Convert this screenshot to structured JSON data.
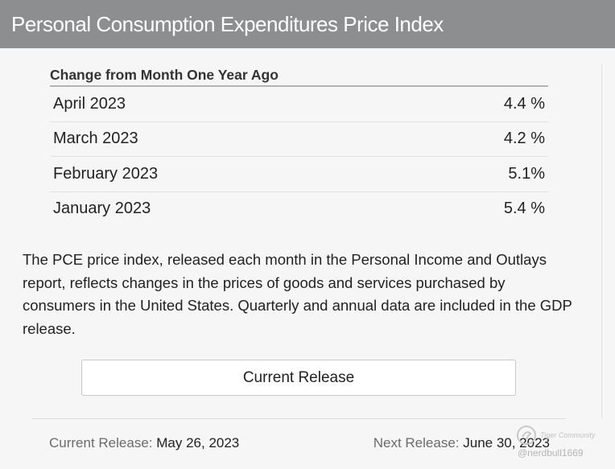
{
  "header": {
    "title": "Personal Consumption Expenditures Price Index"
  },
  "table": {
    "heading": "Change from Month One Year Ago",
    "rows": [
      {
        "month": "April 2023",
        "value": "4.4 %"
      },
      {
        "month": "March 2023",
        "value": "4.2 %"
      },
      {
        "month": "February 2023",
        "value": "5.1%"
      },
      {
        "month": "January 2023",
        "value": "5.4 %"
      }
    ]
  },
  "description": "The PCE price index, released each month in the Personal Income and Outlays report, reflects changes in the prices of goods and services purchased by consumers in the United States. Quarterly and annual data are included in the GDP release.",
  "button": {
    "label": "Current Release"
  },
  "footer": {
    "current_label": "Current Release:",
    "current_date": "May 26, 2023",
    "next_label": "Next Release:",
    "next_date": "June 30, 2023"
  },
  "watermark": {
    "brand": "Tiger Community",
    "handle": "@nerdbull1669"
  },
  "colors": {
    "header_bg": "#8c8e8f",
    "page_bg": "#f6f6f6"
  }
}
